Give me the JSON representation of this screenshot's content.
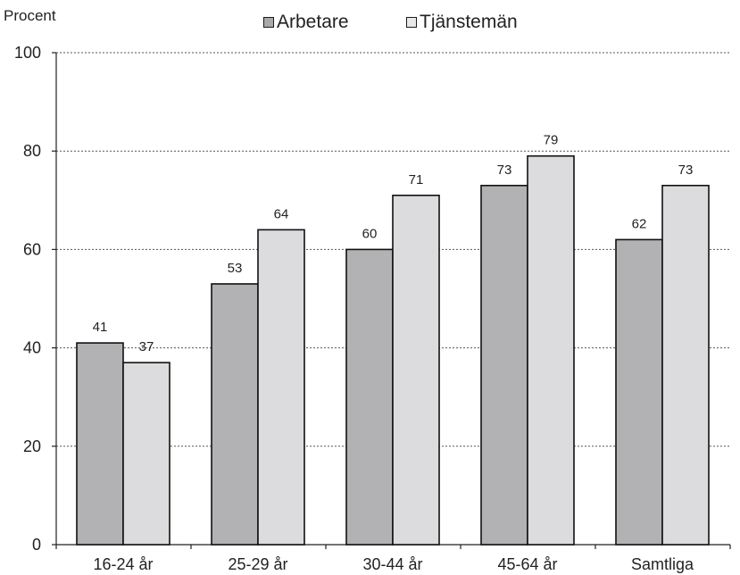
{
  "chart_data": {
    "type": "bar",
    "ylabel": "Procent",
    "categories": [
      "16-24 år",
      "25-29 år",
      "30-44 år",
      "45-64 år",
      "Samtliga"
    ],
    "series": [
      {
        "name": "Arbetare",
        "color": "#b2b2b4",
        "values": [
          41,
          53,
          60,
          73,
          62
        ]
      },
      {
        "name": "Tjänstemän",
        "color": "#dcdcde",
        "values": [
          37,
          64,
          71,
          79,
          73
        ]
      }
    ],
    "ylim": [
      0,
      100
    ],
    "yticks": [
      0,
      20,
      40,
      60,
      80,
      100
    ],
    "grid": "dotted horizontal",
    "legend": "top"
  }
}
